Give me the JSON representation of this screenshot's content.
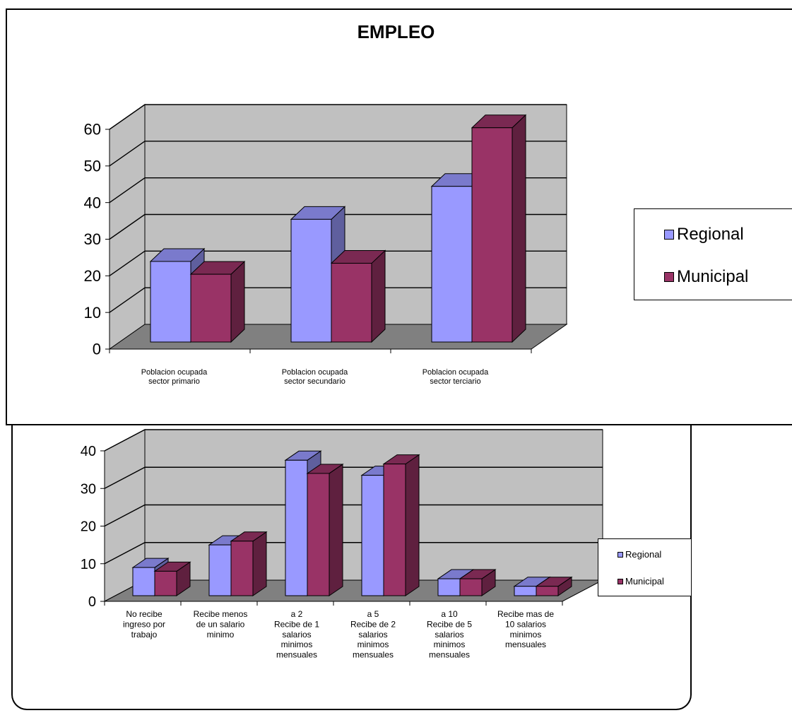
{
  "colors": {
    "regional": "#9999FF",
    "municipal": "#993366",
    "wall": "#C0C0C0",
    "floor": "#808080"
  },
  "chart_data": [
    {
      "type": "bar",
      "title": "EMPLEO",
      "ylim": [
        0,
        60
      ],
      "yticks": [
        "0",
        "10",
        "20",
        "30",
        "40",
        "50",
        "60"
      ],
      "categories": [
        [
          "Poblacion ocupada",
          "sector primario"
        ],
        [
          "Poblacion ocupada",
          "sector secundario"
        ],
        [
          "Poblacion ocupada",
          "sector terciario"
        ]
      ],
      "series": [
        {
          "name": "Regional",
          "values": [
            22,
            33.5,
            42.5
          ]
        },
        {
          "name": "Municipal",
          "values": [
            18.5,
            21.5,
            58.5
          ]
        }
      ],
      "grid": true,
      "legend": "right"
    },
    {
      "type": "bar",
      "title": "",
      "ylim": [
        0,
        40
      ],
      "yticks": [
        "0",
        "10",
        "20",
        "30",
        "40"
      ],
      "categories": [
        [
          "No recibe",
          "ingreso por",
          "trabajo"
        ],
        [
          "Recibe menos",
          "de un salario",
          "minimo"
        ],
        [
          "a 2",
          "Recibe de 1",
          "salarios",
          "minimos",
          "mensuales"
        ],
        [
          "a 5",
          "Recibe de 2",
          "salarios",
          "minimos",
          "mensuales"
        ],
        [
          "a 10",
          "Recibe de 5",
          "salarios",
          "minimos",
          "mensuales"
        ],
        [
          "Recibe mas de",
          "10 salarios",
          "minimos",
          "mensuales"
        ]
      ],
      "series": [
        {
          "name": "Regional",
          "values": [
            7.5,
            13.5,
            36,
            32,
            4.5,
            2.5
          ]
        },
        {
          "name": "Municipal",
          "values": [
            6.5,
            14.5,
            32.5,
            35,
            4.5,
            2.5
          ]
        }
      ],
      "grid": true,
      "legend": "right"
    }
  ]
}
